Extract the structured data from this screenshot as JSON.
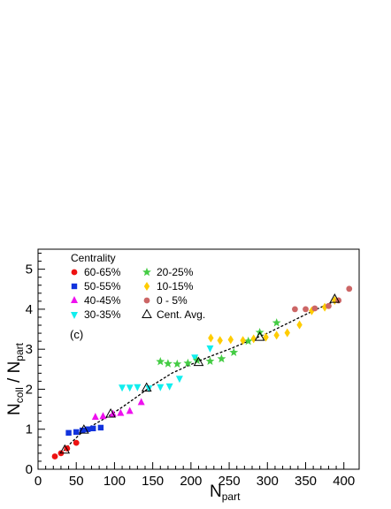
{
  "chart_data": {
    "type": "scatter",
    "xlabel": "N",
    "xlabel_sub": "part",
    "ylabel_n": "N",
    "ylabel_sub1": "coll",
    "ylabel_mid": " / N",
    "ylabel_sub2": "part",
    "panel_label": "(c)",
    "legend_title": "Centrality",
    "legend_position": "top-left",
    "xlim": [
      0,
      420
    ],
    "ylim": [
      0,
      5.5
    ],
    "x_ticks": [
      0,
      50,
      100,
      150,
      200,
      250,
      300,
      350,
      400
    ],
    "y_ticks": [
      0,
      1,
      2,
      3,
      4,
      5
    ],
    "series": [
      {
        "name": "60-65%",
        "marker": "circle",
        "color": "#ee1111",
        "points": [
          [
            22,
            0.32
          ],
          [
            30,
            0.4
          ],
          [
            38,
            0.52
          ],
          [
            50,
            0.66
          ]
        ]
      },
      {
        "name": "50-55%",
        "marker": "square",
        "color": "#1133dd",
        "points": [
          [
            40,
            0.91
          ],
          [
            50,
            0.93
          ],
          [
            58,
            0.97
          ],
          [
            65,
            1.0
          ],
          [
            72,
            1.02
          ],
          [
            82,
            1.04
          ]
        ]
      },
      {
        "name": "40-45%",
        "marker": "triangle-up",
        "color": "#ee11ee",
        "points": [
          [
            75,
            1.3
          ],
          [
            85,
            1.32
          ],
          [
            98,
            1.38
          ],
          [
            108,
            1.4
          ],
          [
            120,
            1.45
          ],
          [
            135,
            1.67
          ]
        ]
      },
      {
        "name": "30-35%",
        "marker": "triangle-down",
        "color": "#11eeee",
        "points": [
          [
            110,
            2.05
          ],
          [
            120,
            2.05
          ],
          [
            130,
            2.06
          ],
          [
            145,
            2.03
          ],
          [
            160,
            2.06
          ],
          [
            172,
            2.08
          ],
          [
            185,
            2.27
          ],
          [
            205,
            2.8
          ],
          [
            225,
            3.03
          ]
        ]
      },
      {
        "name": "20-25%",
        "marker": "star",
        "color": "#44cc44",
        "points": [
          [
            160,
            2.69
          ],
          [
            170,
            2.64
          ],
          [
            182,
            2.63
          ],
          [
            196,
            2.65
          ],
          [
            208,
            2.72
          ],
          [
            225,
            2.7
          ],
          [
            240,
            2.76
          ],
          [
            256,
            2.92
          ],
          [
            275,
            3.2
          ],
          [
            290,
            3.42
          ],
          [
            312,
            3.66
          ]
        ]
      },
      {
        "name": "10-15%",
        "marker": "diamond",
        "color": "#ffcc00",
        "points": [
          [
            226,
            3.28
          ],
          [
            238,
            3.22
          ],
          [
            252,
            3.24
          ],
          [
            268,
            3.22
          ],
          [
            282,
            3.26
          ],
          [
            298,
            3.3
          ],
          [
            312,
            3.35
          ],
          [
            326,
            3.41
          ],
          [
            342,
            3.61
          ],
          [
            358,
            3.96
          ],
          [
            375,
            4.05
          ],
          [
            388,
            4.22
          ]
        ]
      },
      {
        "name": "0 - 5%",
        "marker": "circle",
        "color": "#cc6666",
        "points": [
          [
            336,
            4.0
          ],
          [
            350,
            4.0
          ],
          [
            362,
            4.02
          ],
          [
            380,
            4.08
          ],
          [
            393,
            4.22
          ],
          [
            407,
            4.51
          ]
        ]
      },
      {
        "name": "Cent. Avg.",
        "marker": "open-triangle",
        "color": "#000000",
        "points": [
          [
            35,
            0.48
          ],
          [
            60,
            0.98
          ],
          [
            95,
            1.38
          ],
          [
            142,
            2.03
          ],
          [
            210,
            2.67
          ],
          [
            290,
            3.3
          ],
          [
            388,
            4.25
          ]
        ]
      }
    ],
    "fit_curve": {
      "style": "dashed",
      "color": "#000000",
      "points": [
        [
          30,
          0.38
        ],
        [
          40,
          0.6
        ],
        [
          55,
          0.88
        ],
        [
          70,
          1.08
        ],
        [
          90,
          1.3
        ],
        [
          110,
          1.55
        ],
        [
          130,
          1.82
        ],
        [
          150,
          2.1
        ],
        [
          175,
          2.4
        ],
        [
          200,
          2.62
        ],
        [
          225,
          2.82
        ],
        [
          250,
          3.0
        ],
        [
          275,
          3.2
        ],
        [
          300,
          3.4
        ],
        [
          330,
          3.68
        ],
        [
          360,
          3.96
        ],
        [
          390,
          4.22
        ]
      ]
    }
  }
}
